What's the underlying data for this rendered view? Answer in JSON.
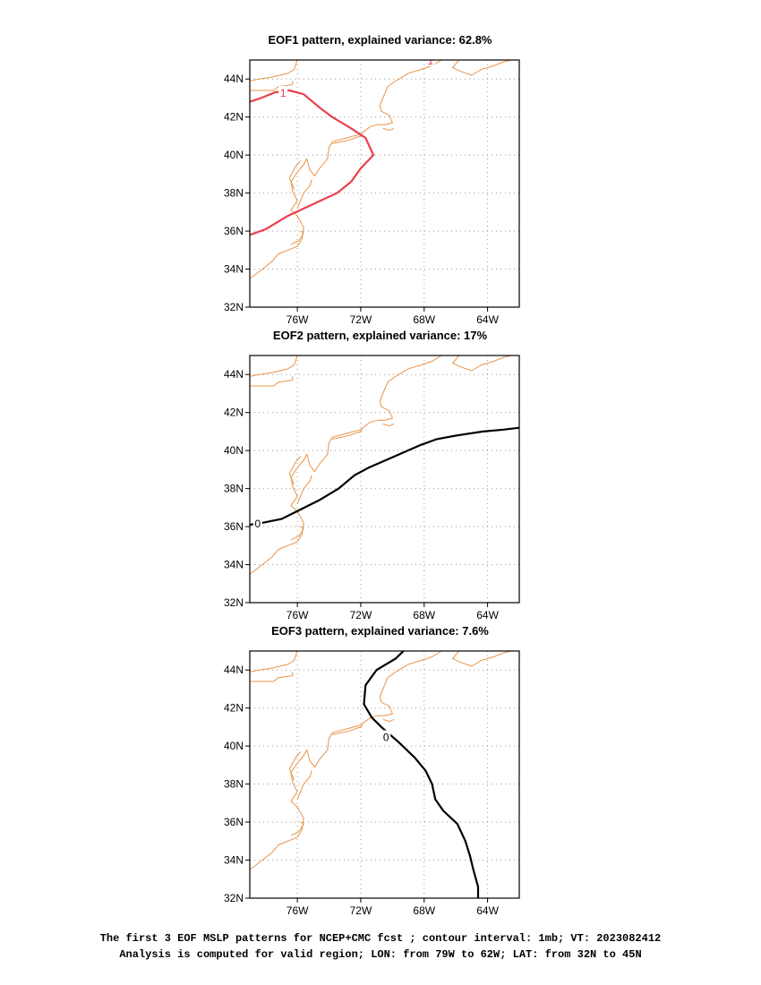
{
  "figure": {
    "region": {
      "lon_min": -79,
      "lon_max": -62,
      "lat_min": 32,
      "lat_max": 45
    },
    "lat_ticks": [
      32,
      34,
      36,
      38,
      40,
      42,
      44
    ],
    "lat_labels": [
      "32N",
      "34N",
      "36N",
      "38N",
      "40N",
      "42N",
      "44N"
    ],
    "lon_ticks": [
      -76,
      -72,
      -68,
      -64
    ],
    "lon_labels": [
      "76W",
      "72W",
      "68W",
      "64W"
    ],
    "colors": {
      "coastline": "#e8944a",
      "eof1_contour": "#e8414c",
      "contour": "#000000",
      "grid": "#999999"
    }
  },
  "panels": [
    {
      "title": "EOF1 pattern, explained variance: 62.8%",
      "contours": [
        {
          "label": "1",
          "label_at": [
            -76.9,
            43.3
          ],
          "color": "#e8414c",
          "points": [
            [
              -79,
              42.8
            ],
            [
              -78.3,
              43.0
            ],
            [
              -77.4,
              43.3
            ],
            [
              -76.5,
              43.4
            ],
            [
              -75.6,
              43.2
            ],
            [
              -74.6,
              42.5
            ],
            [
              -73.8,
              42.0
            ],
            [
              -72.6,
              41.4
            ],
            [
              -71.7,
              40.9
            ],
            [
              -71.2,
              40.0
            ],
            [
              -72.0,
              39.3
            ],
            [
              -72.6,
              38.6
            ],
            [
              -73.5,
              38.0
            ],
            [
              -74.8,
              37.5
            ],
            [
              -76.6,
              36.8
            ],
            [
              -78.0,
              36.1
            ],
            [
              -79,
              35.8
            ]
          ]
        },
        {
          "label": "1",
          "label_at": [
            -67.6,
            45.0
          ],
          "color": "#e8414c",
          "points": [
            [
              -67.8,
              44.7
            ],
            [
              -67.6,
              45.0
            ]
          ]
        }
      ]
    },
    {
      "title": "EOF2 pattern, explained variance: 17%",
      "contours": [
        {
          "label": "0",
          "label_at": [
            -78.5,
            36.2
          ],
          "color": "#000000",
          "points": [
            [
              -79,
              36.1
            ],
            [
              -78.2,
              36.2
            ],
            [
              -77.0,
              36.4
            ],
            [
              -75.8,
              36.9
            ],
            [
              -74.6,
              37.4
            ],
            [
              -73.4,
              38.0
            ],
            [
              -72.4,
              38.7
            ],
            [
              -71.5,
              39.1
            ],
            [
              -70.4,
              39.5
            ],
            [
              -69.3,
              39.9
            ],
            [
              -68.2,
              40.3
            ],
            [
              -67.2,
              40.6
            ],
            [
              -65.9,
              40.8
            ],
            [
              -64.3,
              41.0
            ],
            [
              -63.0,
              41.1
            ],
            [
              -62,
              41.2
            ]
          ]
        }
      ]
    },
    {
      "title": "EOF3 pattern, explained variance: 7.6%",
      "contours": [
        {
          "label": "0",
          "label_at": [
            -70.4,
            40.5
          ],
          "color": "#000000",
          "points": [
            [
              -69.3,
              45
            ],
            [
              -69.8,
              44.6
            ],
            [
              -71.0,
              44.0
            ],
            [
              -71.7,
              43.2
            ],
            [
              -71.8,
              42.2
            ],
            [
              -71.3,
              41.5
            ],
            [
              -70.7,
              41.0
            ],
            [
              -69.6,
              40.2
            ],
            [
              -68.6,
              39.4
            ],
            [
              -67.9,
              38.7
            ],
            [
              -67.5,
              38.0
            ],
            [
              -67.3,
              37.2
            ],
            [
              -66.8,
              36.6
            ],
            [
              -65.9,
              35.9
            ],
            [
              -65.4,
              35.0
            ],
            [
              -65.1,
              34.2
            ],
            [
              -64.9,
              33.5
            ],
            [
              -64.6,
              32.6
            ],
            [
              -64.6,
              32.0
            ]
          ]
        }
      ]
    }
  ],
  "caption": {
    "line1": "The first 3 EOF MSLP patterns for NCEP+CMC fcst ; contour interval: 1mb; VT: 2023082412",
    "line2": "Analysis is computed for valid region; LON: from 79W to 62W; LAT: from 32N to 45N"
  }
}
